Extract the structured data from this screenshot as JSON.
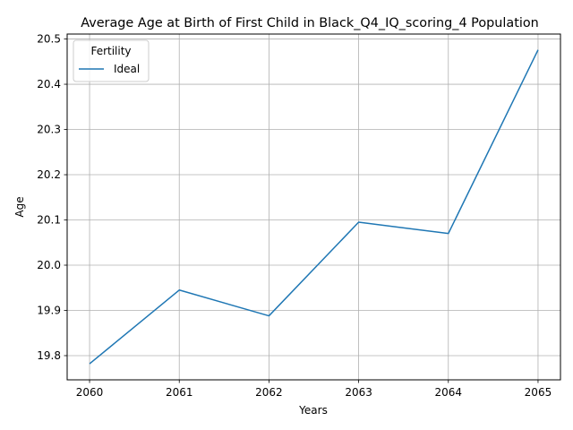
{
  "chart_data": {
    "type": "line",
    "title": "Average Age at Birth of First Child in Black_Q4_IQ_scoring_4 Population",
    "xlabel": "Years",
    "ylabel": "Age",
    "x": [
      2060,
      2061,
      2062,
      2063,
      2064,
      2065
    ],
    "x_tick_labels": [
      "2060",
      "2061",
      "2062",
      "2063",
      "2064",
      "2065"
    ],
    "y_ticks": [
      19.8,
      19.9,
      20.0,
      20.1,
      20.2,
      20.3,
      20.4,
      20.5
    ],
    "y_tick_labels": [
      "19.8",
      "19.9",
      "20.0",
      "20.1",
      "20.2",
      "20.3",
      "20.4",
      "20.5"
    ],
    "xlim": [
      2059.75,
      2065.25
    ],
    "ylim": [
      19.7465,
      20.511
    ],
    "grid": true,
    "legend": {
      "title": "Fertility",
      "placement": "top-left"
    },
    "series": [
      {
        "name": "Ideal",
        "color": "#1f77b4",
        "values": [
          19.782,
          19.945,
          19.888,
          20.095,
          20.07,
          20.476
        ]
      }
    ]
  }
}
